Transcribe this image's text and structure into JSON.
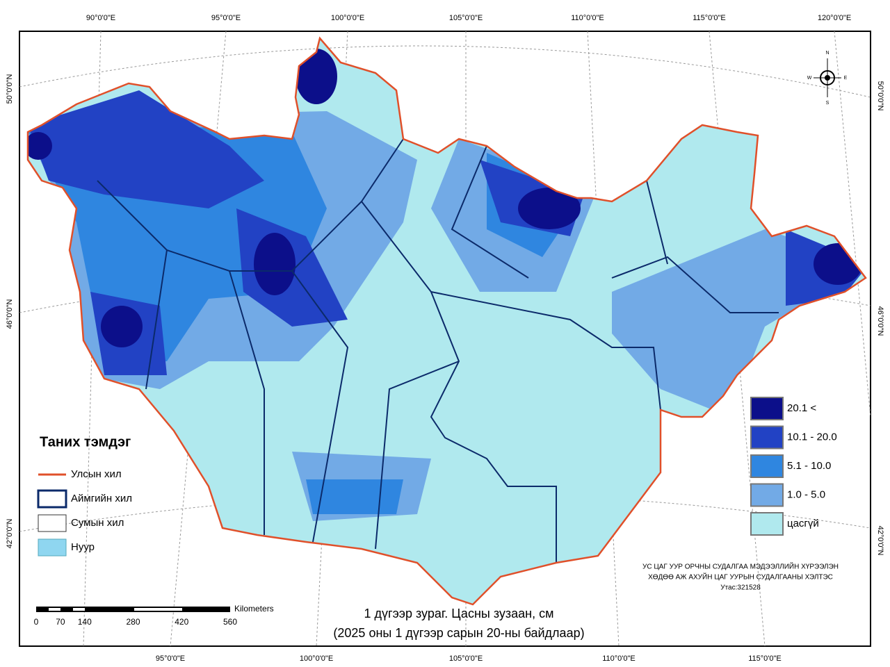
{
  "map": {
    "title": "1 дүгээр зураг. Цасны зузаан, см",
    "subtitle": "(2025 оны 1 дүгээр сарын 20-ны байдлаар)",
    "top_labels": [
      "90°0'0\"E",
      "95°0'0\"E",
      "100°0'0\"E",
      "105°0'0\"E",
      "110°0'0\"E",
      "115°0'0\"E",
      "120°0'0\"E"
    ],
    "bottom_labels": [
      "95°0'0\"E",
      "100°0'0\"E",
      "105°0'0\"E",
      "110°0'0\"E",
      "115°0'0\"E"
    ],
    "left_labels": [
      "50°0'0\"N",
      "46°0'0\"N",
      "42°0'0\"N"
    ],
    "right_labels": [
      "50°0'0\"N",
      "46°0'0\"N",
      "42°0'0\"N"
    ],
    "compass": [
      "N",
      "E",
      "S",
      "W"
    ],
    "legend": {
      "title": "Таних тэмдэг",
      "items": [
        "Улсын хил",
        "Аймгийн хил",
        "Сумын хил",
        "Нуур"
      ]
    },
    "snow_legend": [
      {
        "label": "20.1 <",
        "color": "#0c0f8a"
      },
      {
        "label": "10.1 - 20.0",
        "color": "#2242c4"
      },
      {
        "label": "5.1 - 10.0",
        "color": "#2f86e0"
      },
      {
        "label": "1.0 - 5.0",
        "color": "#72aae6"
      },
      {
        "label": "цасгүй",
        "color": "#b0e9ee"
      }
    ],
    "scale": {
      "unit": "Kilometers",
      "ticks": [
        0,
        70,
        140,
        280,
        420,
        560
      ]
    },
    "credits": [
      "УС ЦАГ УУР ОРЧНЫ СУДАЛГАА МЭДЭЭЛЛИЙН ХҮРЭЭЛЭН",
      "ХӨДӨӨ АЖ АХУЙН ЦАГ УУРЫН СУДАЛГААНЫ ХЭЛТЭС",
      "Утас:321528"
    ]
  }
}
